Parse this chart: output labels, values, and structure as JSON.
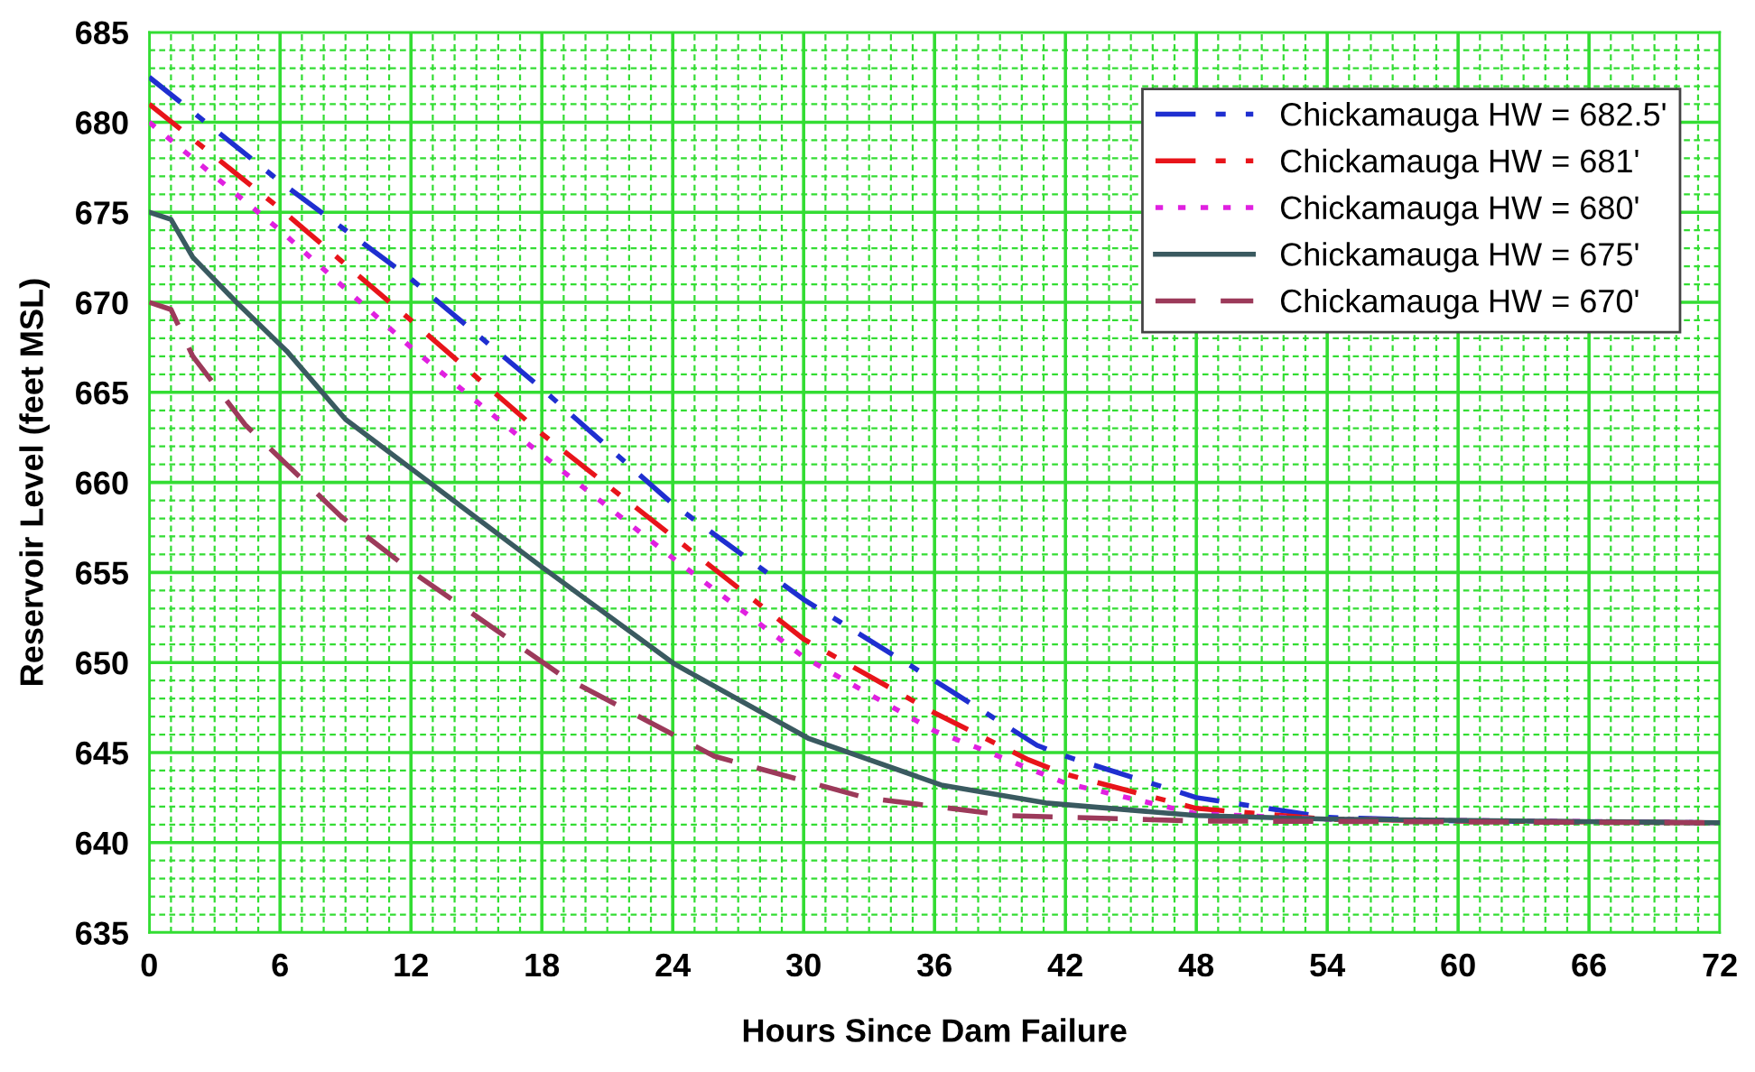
{
  "chart_data": {
    "type": "line",
    "xlabel": "Hours Since Dam Failure",
    "ylabel": "Reservoir Level (feet MSL)",
    "xlim": [
      0,
      72
    ],
    "xticks": [
      0,
      {
        "value": 1,
        "label": null
      },
      {
        "value": 2,
        "label": null
      },
      {
        "value": 3,
        "label": null
      },
      {
        "value": 4,
        "label": null
      },
      {
        "value": 5,
        "label": null
      },
      6,
      {
        "value": 7,
        "label": null
      },
      {
        "value": 8,
        "label": null
      },
      {
        "value": 9,
        "label": null
      },
      {
        "value": 10,
        "label": null
      },
      {
        "value": 11,
        "label": null
      },
      12,
      {
        "value": 13,
        "label": null
      },
      {
        "value": 14,
        "label": null
      },
      {
        "value": 15,
        "label": null
      },
      {
        "value": 16,
        "label": null
      },
      {
        "value": 17,
        "label": null
      },
      18,
      {
        "value": 19,
        "label": null
      },
      {
        "value": 20,
        "label": null
      },
      {
        "value": 21,
        "label": null
      },
      {
        "value": 22,
        "label": null
      },
      {
        "value": 23,
        "label": null
      },
      24,
      {
        "value": 25,
        "label": null
      },
      {
        "value": 26,
        "label": null
      },
      {
        "value": 27,
        "label": null
      },
      {
        "value": 28,
        "label": null
      },
      {
        "value": 29,
        "label": null
      },
      30,
      {
        "value": 31,
        "label": null
      },
      {
        "value": 32,
        "label": null
      },
      {
        "value": 33,
        "label": null
      },
      {
        "value": 34,
        "label": null
      },
      {
        "value": 35,
        "label": null
      },
      36,
      {
        "value": 37,
        "label": null
      },
      {
        "value": 38,
        "label": null
      },
      {
        "value": 39,
        "label": null
      },
      {
        "value": 40,
        "label": null
      },
      {
        "value": 41,
        "label": null
      },
      42,
      {
        "value": 43,
        "label": null
      },
      {
        "value": 44,
        "label": null
      },
      {
        "value": 45,
        "label": null
      },
      {
        "value": 46,
        "label": null
      },
      {
        "value": 47,
        "label": null
      },
      48,
      {
        "value": 49,
        "label": null
      },
      {
        "value": 50,
        "label": null
      },
      {
        "value": 51,
        "label": null
      },
      {
        "value": 52,
        "label": null
      },
      {
        "value": 53,
        "label": null
      },
      54,
      {
        "value": 55,
        "label": null
      },
      {
        "value": 56,
        "label": null
      },
      {
        "value": 57,
        "label": null
      },
      {
        "value": 58,
        "label": null
      },
      {
        "value": 59,
        "label": null
      },
      60,
      {
        "value": 61,
        "label": null
      },
      {
        "value": 62,
        "label": null
      },
      {
        "value": 63,
        "label": null
      },
      {
        "value": 64,
        "label": null
      },
      {
        "value": 65,
        "label": null
      },
      66,
      {
        "value": 67,
        "label": null
      },
      {
        "value": 68,
        "label": null
      },
      {
        "value": 69,
        "label": null
      },
      {
        "value": 70,
        "label": null
      },
      {
        "value": 71,
        "label": null
      },
      72
    ],
    "ylim": [
      635,
      685
    ],
    "yticks": [
      635,
      {
        "value": 636,
        "label": null
      },
      {
        "value": 637,
        "label": null
      },
      {
        "value": 638,
        "label": null
      },
      {
        "value": 639,
        "label": null
      },
      640,
      {
        "value": 641,
        "label": null
      },
      {
        "value": 642,
        "label": null
      },
      {
        "value": 643,
        "label": null
      },
      {
        "value": 644,
        "label": null
      },
      645,
      {
        "value": 646,
        "label": null
      },
      {
        "value": 647,
        "label": null
      },
      {
        "value": 648,
        "label": null
      },
      {
        "value": 649,
        "label": null
      },
      650,
      {
        "value": 651,
        "label": null
      },
      {
        "value": 652,
        "label": null
      },
      {
        "value": 653,
        "label": null
      },
      {
        "value": 654,
        "label": null
      },
      655,
      {
        "value": 656,
        "label": null
      },
      {
        "value": 657,
        "label": null
      },
      {
        "value": 658,
        "label": null
      },
      {
        "value": 659,
        "label": null
      },
      660,
      {
        "value": 661,
        "label": null
      },
      {
        "value": 662,
        "label": null
      },
      {
        "value": 663,
        "label": null
      },
      {
        "value": 664,
        "label": null
      },
      665,
      {
        "value": 666,
        "label": null
      },
      {
        "value": 667,
        "label": null
      },
      {
        "value": 668,
        "label": null
      },
      {
        "value": 669,
        "label": null
      },
      670,
      {
        "value": 671,
        "label": null
      },
      {
        "value": 672,
        "label": null
      },
      {
        "value": 673,
        "label": null
      },
      {
        "value": 674,
        "label": null
      },
      675,
      {
        "value": 676,
        "label": null
      },
      {
        "value": 677,
        "label": null
      },
      {
        "value": 678,
        "label": null
      },
      {
        "value": 679,
        "label": null
      },
      680,
      {
        "value": 681,
        "label": null
      },
      {
        "value": 682,
        "label": null
      },
      {
        "value": 683,
        "label": null
      },
      {
        "value": 684,
        "label": null
      },
      685
    ],
    "grid": true,
    "legend": "top right",
    "marker": "none",
    "series": [
      {
        "name": "Chickamauga HW = 682.5'",
        "color": "#1f2fd0",
        "line_style": "dashdot",
        "x": [
          0,
          6,
          12,
          18,
          24,
          30,
          36,
          40.7,
          42,
          48,
          54,
          60,
          72
        ],
        "values": [
          682.5,
          676.7,
          671.3,
          665.2,
          658.8,
          653.5,
          649,
          645.4,
          644.8,
          642.5,
          641.4,
          641.2,
          641.1
        ]
      },
      {
        "name": "Chickamauga HW = 681'",
        "color": "#e8141a",
        "line_style": "dashdot",
        "x": [
          0,
          6,
          12,
          18,
          20.1,
          24,
          30,
          36,
          40.3,
          42,
          48,
          54,
          60,
          72
        ],
        "values": [
          681,
          675.2,
          669,
          662.7,
          660.7,
          657,
          651.3,
          647.2,
          644.6,
          643.8,
          641.9,
          641.3,
          641.2,
          641.1
        ]
      },
      {
        "name": "Chickamauga HW = 680'",
        "color": "#e020e0",
        "line_style": "dotted",
        "x": [
          0,
          6,
          12,
          17.1,
          24,
          30,
          36,
          37.9,
          42,
          48,
          54,
          72
        ],
        "values": [
          680,
          674,
          667.5,
          662.4,
          655.8,
          650.3,
          646.2,
          645.3,
          643.3,
          641.6,
          641.3,
          641.1
        ]
      },
      {
        "name": "Chickamauga HW = 675'",
        "color": "#3a5a60",
        "line_style": "solid",
        "x": [
          0,
          1,
          2,
          4,
          6.3,
          9,
          12.3,
          18,
          24.1,
          30.2,
          36.3,
          41.1,
          48,
          54,
          72
        ],
        "values": [
          675,
          674.6,
          672.5,
          670,
          667.3,
          663.5,
          660.5,
          655.3,
          649.9,
          645.8,
          643.2,
          642.2,
          641.5,
          641.3,
          641.1
        ]
      },
      {
        "name": "Chickamauga HW = 670'",
        "color": "#9c3a5a",
        "line_style": "dashed",
        "x": [
          0,
          1,
          2,
          4.4,
          8.8,
          12.1,
          19,
          25.9,
          32.8,
          39.4,
          48,
          72
        ],
        "values": [
          670,
          669.6,
          667,
          663.2,
          658.1,
          655,
          649.2,
          644.8,
          642.5,
          641.5,
          641.2,
          641.1
        ]
      }
    ]
  }
}
